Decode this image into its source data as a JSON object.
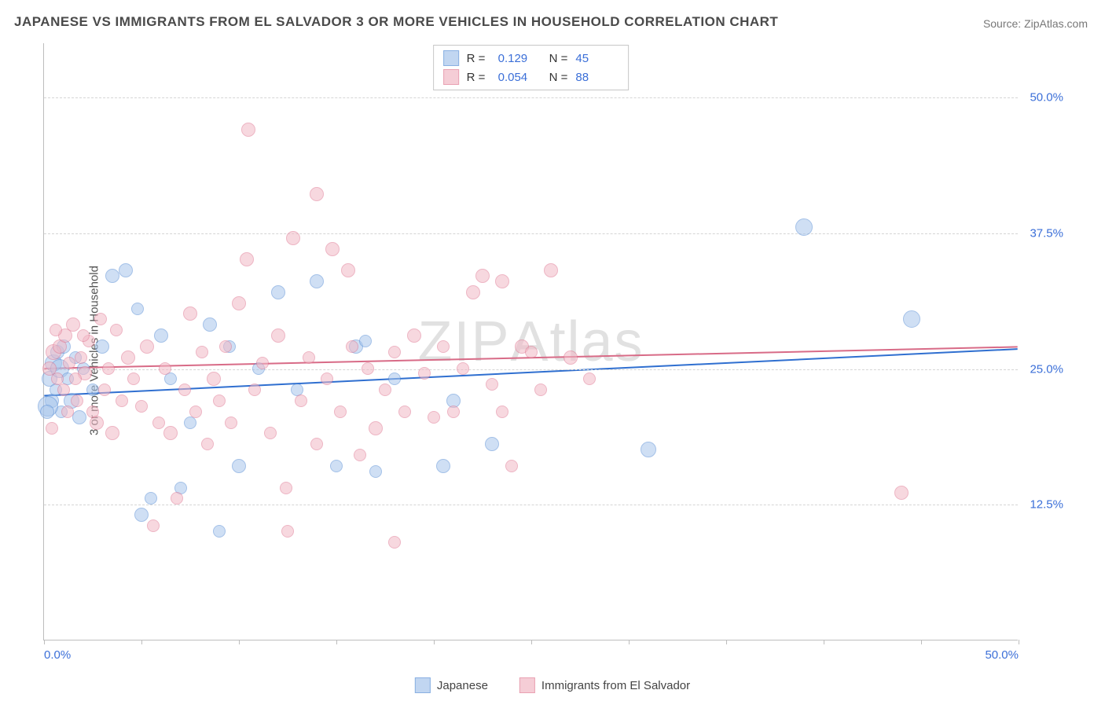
{
  "title": "JAPANESE VS IMMIGRANTS FROM EL SALVADOR 3 OR MORE VEHICLES IN HOUSEHOLD CORRELATION CHART",
  "source": "Source: ZipAtlas.com",
  "ylabel": "3 or more Vehicles in Household",
  "watermark_zip": "ZIP",
  "watermark_atlas": "Atlas",
  "chart": {
    "type": "scatter",
    "xlim": [
      0,
      50
    ],
    "ylim": [
      0,
      55
    ],
    "xtick_positions": [
      0,
      5,
      10,
      15,
      20,
      25,
      30,
      35,
      40,
      45,
      50
    ],
    "xtick_labels": {
      "0": "0.0%",
      "50": "50.0%"
    },
    "ytick_positions": [
      12.5,
      25.0,
      37.5,
      50.0
    ],
    "ytick_labels": [
      "12.5%",
      "25.0%",
      "37.5%",
      "50.0%"
    ],
    "grid_color": "#d5d5d5",
    "axis_color": "#bdbdbd",
    "background_color": "#ffffff",
    "label_color": "#3b6fd8",
    "title_color": "#4a4a4a",
    "series": [
      {
        "name": "Japanese",
        "fill_color": "#a8c6ec",
        "stroke_color": "#5a8fd6",
        "fill_opacity": 0.55,
        "marker_radius_base": 8,
        "trendline": {
          "color": "#2f6fd0",
          "width": 2,
          "y_at_x0": 22.5,
          "y_at_xmax": 26.8
        },
        "R": "0.129",
        "N": "45",
        "points": [
          {
            "x": 0.3,
            "y": 24,
            "r": 10
          },
          {
            "x": 0.4,
            "y": 22,
            "r": 9
          },
          {
            "x": 0.5,
            "y": 25.5,
            "r": 11
          },
          {
            "x": 0.6,
            "y": 23,
            "r": 8
          },
          {
            "x": 0.7,
            "y": 26.5,
            "r": 9
          },
          {
            "x": 0.8,
            "y": 25,
            "r": 12
          },
          {
            "x": 0.9,
            "y": 21,
            "r": 8
          },
          {
            "x": 1.0,
            "y": 27,
            "r": 9
          },
          {
            "x": 1.2,
            "y": 24,
            "r": 8
          },
          {
            "x": 1.4,
            "y": 22,
            "r": 10
          },
          {
            "x": 1.6,
            "y": 26,
            "r": 8
          },
          {
            "x": 1.8,
            "y": 20.5,
            "r": 9
          },
          {
            "x": 2.0,
            "y": 25,
            "r": 8
          },
          {
            "x": 2.5,
            "y": 23,
            "r": 8
          },
          {
            "x": 3.0,
            "y": 27,
            "r": 9
          },
          {
            "x": 3.5,
            "y": 33.5,
            "r": 9
          },
          {
            "x": 4.2,
            "y": 34,
            "r": 9
          },
          {
            "x": 4.8,
            "y": 30.5,
            "r": 8
          },
          {
            "x": 5.0,
            "y": 11.5,
            "r": 9
          },
          {
            "x": 5.5,
            "y": 13,
            "r": 8
          },
          {
            "x": 6.0,
            "y": 28,
            "r": 9
          },
          {
            "x": 6.5,
            "y": 24,
            "r": 8
          },
          {
            "x": 7.0,
            "y": 14,
            "r": 8
          },
          {
            "x": 7.5,
            "y": 20,
            "r": 8
          },
          {
            "x": 8.5,
            "y": 29,
            "r": 9
          },
          {
            "x": 9.0,
            "y": 10,
            "r": 8
          },
          {
            "x": 9.5,
            "y": 27,
            "r": 8
          },
          {
            "x": 10.0,
            "y": 16,
            "r": 9
          },
          {
            "x": 11.0,
            "y": 25,
            "r": 8
          },
          {
            "x": 12.0,
            "y": 32,
            "r": 9
          },
          {
            "x": 13.0,
            "y": 23,
            "r": 8
          },
          {
            "x": 14.0,
            "y": 33,
            "r": 9
          },
          {
            "x": 15.0,
            "y": 16,
            "r": 8
          },
          {
            "x": 16.0,
            "y": 27,
            "r": 9
          },
          {
            "x": 16.5,
            "y": 27.5,
            "r": 8
          },
          {
            "x": 17.0,
            "y": 15.5,
            "r": 8
          },
          {
            "x": 18.0,
            "y": 24,
            "r": 8
          },
          {
            "x": 20.5,
            "y": 16,
            "r": 9
          },
          {
            "x": 21.0,
            "y": 22,
            "r": 9
          },
          {
            "x": 23.0,
            "y": 18,
            "r": 9
          },
          {
            "x": 31.0,
            "y": 17.5,
            "r": 10
          },
          {
            "x": 39.0,
            "y": 38,
            "r": 11
          },
          {
            "x": 44.5,
            "y": 29.5,
            "r": 11
          },
          {
            "x": 0.2,
            "y": 21.5,
            "r": 13
          },
          {
            "x": 0.15,
            "y": 21,
            "r": 9
          }
        ]
      },
      {
        "name": "Immigrants from El Salvador",
        "fill_color": "#f2b9c6",
        "stroke_color": "#e07a94",
        "fill_opacity": 0.55,
        "marker_radius_base": 8,
        "trendline": {
          "color": "#d86b87",
          "width": 2,
          "y_at_x0": 25.0,
          "y_at_xmax": 27.0
        },
        "R": "0.054",
        "N": "88",
        "points": [
          {
            "x": 0.3,
            "y": 25,
            "r": 9
          },
          {
            "x": 0.5,
            "y": 26.5,
            "r": 10
          },
          {
            "x": 0.7,
            "y": 24,
            "r": 8
          },
          {
            "x": 0.8,
            "y": 27,
            "r": 9
          },
          {
            "x": 1.0,
            "y": 23,
            "r": 8
          },
          {
            "x": 1.1,
            "y": 28,
            "r": 9
          },
          {
            "x": 1.3,
            "y": 25.5,
            "r": 8
          },
          {
            "x": 1.5,
            "y": 29,
            "r": 9
          },
          {
            "x": 1.7,
            "y": 22,
            "r": 8
          },
          {
            "x": 1.9,
            "y": 26,
            "r": 8
          },
          {
            "x": 2.1,
            "y": 24.5,
            "r": 9
          },
          {
            "x": 2.3,
            "y": 27.5,
            "r": 8
          },
          {
            "x": 2.5,
            "y": 21,
            "r": 8
          },
          {
            "x": 2.7,
            "y": 20,
            "r": 9
          },
          {
            "x": 2.9,
            "y": 29.5,
            "r": 8
          },
          {
            "x": 3.1,
            "y": 23,
            "r": 8
          },
          {
            "x": 3.3,
            "y": 25,
            "r": 8
          },
          {
            "x": 3.5,
            "y": 19,
            "r": 9
          },
          {
            "x": 3.7,
            "y": 28.5,
            "r": 8
          },
          {
            "x": 4.0,
            "y": 22,
            "r": 8
          },
          {
            "x": 4.3,
            "y": 26,
            "r": 9
          },
          {
            "x": 4.6,
            "y": 24,
            "r": 8
          },
          {
            "x": 5.0,
            "y": 21.5,
            "r": 8
          },
          {
            "x": 5.3,
            "y": 27,
            "r": 9
          },
          {
            "x": 5.6,
            "y": 10.5,
            "r": 8
          },
          {
            "x": 5.9,
            "y": 20,
            "r": 8
          },
          {
            "x": 6.2,
            "y": 25,
            "r": 8
          },
          {
            "x": 6.5,
            "y": 19,
            "r": 9
          },
          {
            "x": 6.8,
            "y": 13,
            "r": 8
          },
          {
            "x": 7.2,
            "y": 23,
            "r": 8
          },
          {
            "x": 7.5,
            "y": 30,
            "r": 9
          },
          {
            "x": 7.8,
            "y": 21,
            "r": 8
          },
          {
            "x": 8.1,
            "y": 26.5,
            "r": 8
          },
          {
            "x": 8.4,
            "y": 18,
            "r": 8
          },
          {
            "x": 8.7,
            "y": 24,
            "r": 9
          },
          {
            "x": 9.0,
            "y": 22,
            "r": 8
          },
          {
            "x": 9.3,
            "y": 27,
            "r": 8
          },
          {
            "x": 9.6,
            "y": 20,
            "r": 8
          },
          {
            "x": 10.0,
            "y": 31,
            "r": 9
          },
          {
            "x": 10.4,
            "y": 35,
            "r": 9
          },
          {
            "x": 10.5,
            "y": 47,
            "r": 9
          },
          {
            "x": 10.8,
            "y": 23,
            "r": 8
          },
          {
            "x": 11.2,
            "y": 25.5,
            "r": 8
          },
          {
            "x": 11.6,
            "y": 19,
            "r": 8
          },
          {
            "x": 12.0,
            "y": 28,
            "r": 9
          },
          {
            "x": 12.4,
            "y": 14,
            "r": 8
          },
          {
            "x": 12.8,
            "y": 37,
            "r": 9
          },
          {
            "x": 13.2,
            "y": 22,
            "r": 8
          },
          {
            "x": 13.6,
            "y": 26,
            "r": 8
          },
          {
            "x": 14.0,
            "y": 41,
            "r": 9
          },
          {
            "x": 14.0,
            "y": 18,
            "r": 8
          },
          {
            "x": 14.5,
            "y": 24,
            "r": 8
          },
          {
            "x": 14.8,
            "y": 36,
            "r": 9
          },
          {
            "x": 15.2,
            "y": 21,
            "r": 8
          },
          {
            "x": 15.6,
            "y": 34,
            "r": 9
          },
          {
            "x": 15.8,
            "y": 27,
            "r": 8
          },
          {
            "x": 16.2,
            "y": 17,
            "r": 8
          },
          {
            "x": 16.6,
            "y": 25,
            "r": 8
          },
          {
            "x": 17.0,
            "y": 19.5,
            "r": 9
          },
          {
            "x": 17.5,
            "y": 23,
            "r": 8
          },
          {
            "x": 18.0,
            "y": 9,
            "r": 8
          },
          {
            "x": 18.0,
            "y": 26.5,
            "r": 8
          },
          {
            "x": 18.5,
            "y": 21,
            "r": 8
          },
          {
            "x": 19.0,
            "y": 28,
            "r": 9
          },
          {
            "x": 19.5,
            "y": 24.5,
            "r": 8
          },
          {
            "x": 20.0,
            "y": 20.5,
            "r": 8
          },
          {
            "x": 20.5,
            "y": 27,
            "r": 8
          },
          {
            "x": 21.0,
            "y": 21,
            "r": 8
          },
          {
            "x": 21.5,
            "y": 25,
            "r": 8
          },
          {
            "x": 22.0,
            "y": 32,
            "r": 9
          },
          {
            "x": 22.5,
            "y": 33.5,
            "r": 9
          },
          {
            "x": 23.0,
            "y": 23.5,
            "r": 8
          },
          {
            "x": 23.5,
            "y": 21,
            "r": 8
          },
          {
            "x": 23.5,
            "y": 33,
            "r": 9
          },
          {
            "x": 24.0,
            "y": 16,
            "r": 8
          },
          {
            "x": 24.5,
            "y": 27,
            "r": 9
          },
          {
            "x": 25.0,
            "y": 26.5,
            "r": 8
          },
          {
            "x": 25.5,
            "y": 23,
            "r": 8
          },
          {
            "x": 26.0,
            "y": 34,
            "r": 9
          },
          {
            "x": 27.0,
            "y": 26,
            "r": 9
          },
          {
            "x": 28.0,
            "y": 24,
            "r": 8
          },
          {
            "x": 44.0,
            "y": 13.5,
            "r": 9
          },
          {
            "x": 0.4,
            "y": 19.5,
            "r": 8
          },
          {
            "x": 0.6,
            "y": 28.5,
            "r": 8
          },
          {
            "x": 1.2,
            "y": 21,
            "r": 8
          },
          {
            "x": 1.6,
            "y": 24,
            "r": 8
          },
          {
            "x": 2.0,
            "y": 28,
            "r": 8
          },
          {
            "x": 12.5,
            "y": 10,
            "r": 8
          }
        ]
      }
    ]
  },
  "legend_top": {
    "rows": [
      {
        "swatch_fill": "#a8c6ec",
        "swatch_stroke": "#5a8fd6",
        "r_label": "R =",
        "r_value": "0.129",
        "n_label": "N =",
        "n_value": "45"
      },
      {
        "swatch_fill": "#f2b9c6",
        "swatch_stroke": "#e07a94",
        "r_label": "R =",
        "r_value": "0.054",
        "n_label": "N =",
        "n_value": "88"
      }
    ]
  },
  "legend_bottom": {
    "items": [
      {
        "swatch_fill": "#a8c6ec",
        "swatch_stroke": "#5a8fd6",
        "label": "Japanese"
      },
      {
        "swatch_fill": "#f2b9c6",
        "swatch_stroke": "#e07a94",
        "label": "Immigrants from El Salvador"
      }
    ]
  }
}
